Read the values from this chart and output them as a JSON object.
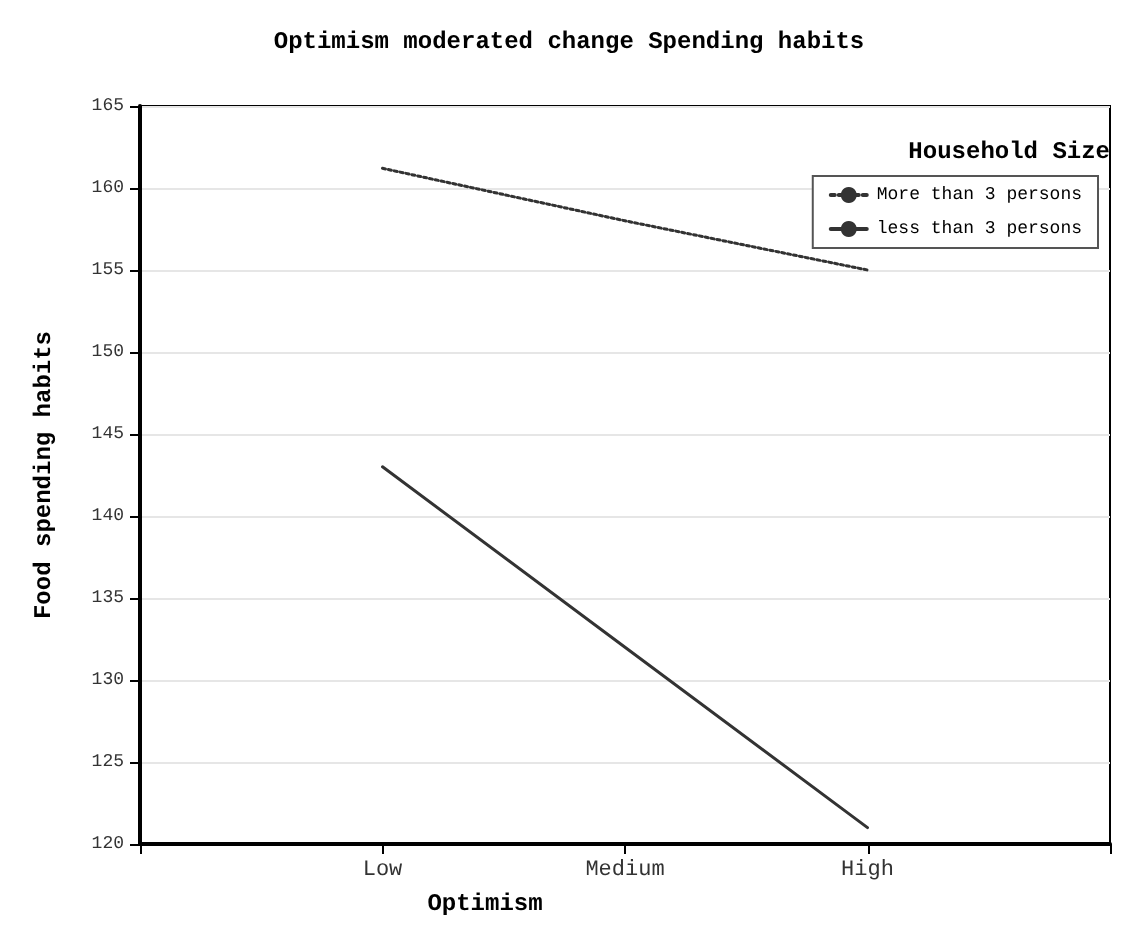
{
  "chart_data": {
    "type": "line",
    "title": "Optimism moderated change Spending habits",
    "xlabel": "Optimism",
    "ylabel": "Food spending habits",
    "legend_title": "Household Size",
    "categories": [
      "Low",
      "Medium",
      "High"
    ],
    "series": [
      {
        "name": "More than 3 persons",
        "color": "#333333",
        "values": [
          161.2,
          158,
          155
        ],
        "line_style": "dotted"
      },
      {
        "name": "less than 3 persons",
        "color": "#333333",
        "values": [
          143,
          132,
          121
        ],
        "line_style": "solid"
      }
    ],
    "ylim": [
      120,
      165
    ],
    "yticks": [
      120,
      125,
      130,
      135,
      140,
      145,
      150,
      155,
      160,
      165
    ],
    "grid": "y",
    "legend": "top right",
    "marker": "none"
  }
}
